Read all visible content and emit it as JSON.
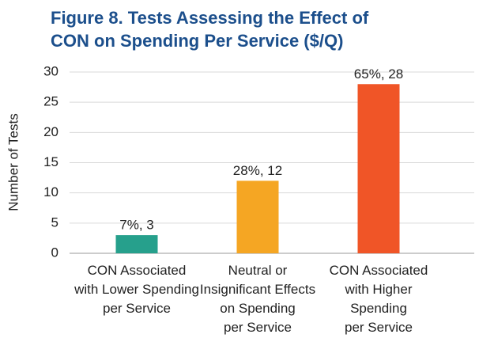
{
  "chart_data": {
    "type": "bar",
    "title": "Figure 8. Tests Assessing the Effect of\nCON on Spending Per Service ($/Q)",
    "y_label": "Number of Tests",
    "categories": [
      "CON Associated\nwith Lower Spending\nper Service",
      "Neutral or\nInsignificant Effects\non Spending\nper Service",
      "CON Associated\nwith Higher\nSpending\nper Service"
    ],
    "values": [
      3,
      12,
      28
    ],
    "value_labels": [
      "7%, 3",
      "28%, 12",
      "65%, 28"
    ],
    "colors": [
      "#26a08c",
      "#f5a623",
      "#f05527"
    ],
    "ylim": [
      0,
      30
    ],
    "yticks": [
      0,
      5,
      10,
      15,
      20,
      25,
      30
    ],
    "grid": true
  }
}
